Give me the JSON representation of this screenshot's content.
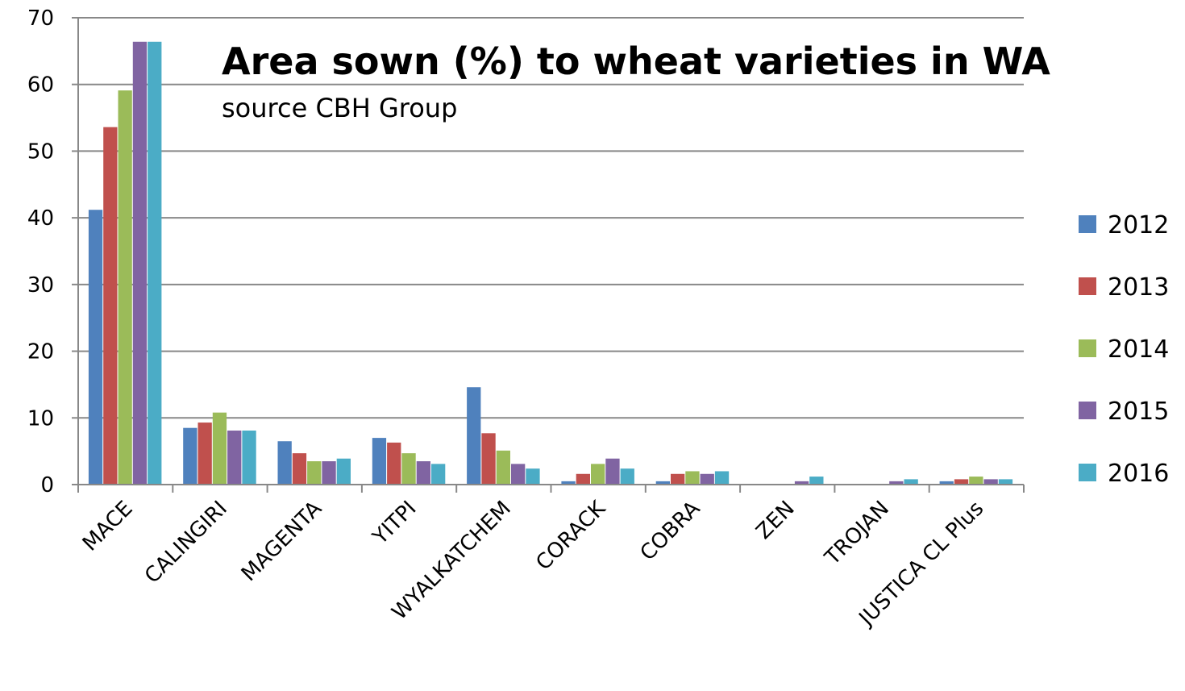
{
  "chart_data": {
    "type": "bar",
    "title": "Area sown (%) to wheat varieties in WA",
    "subtitle": "source CBH Group",
    "categories": [
      "MACE",
      "CALINGIRI",
      "MAGENTA",
      "YITPI",
      "WYALKATCHEM",
      "CORACK",
      "COBRA",
      "ZEN",
      "TROJAN",
      "JUSTICA CL Plus"
    ],
    "series": [
      {
        "name": "2012",
        "color": "#4f81bd",
        "values": [
          41.2,
          8.5,
          6.5,
          7.0,
          14.6,
          0.5,
          0.5,
          0,
          0,
          0.5
        ]
      },
      {
        "name": "2013",
        "color": "#c0504d",
        "values": [
          53.6,
          9.3,
          4.7,
          6.3,
          7.7,
          1.6,
          1.6,
          0,
          0,
          0.8
        ]
      },
      {
        "name": "2014",
        "color": "#9bbb59",
        "values": [
          59.1,
          10.8,
          3.5,
          4.7,
          5.1,
          3.1,
          2.0,
          0,
          0,
          1.2
        ]
      },
      {
        "name": "2015",
        "color": "#8064a2",
        "values": [
          66.4,
          8.1,
          3.5,
          3.5,
          3.1,
          3.9,
          1.6,
          0.5,
          0.5,
          0.8
        ]
      },
      {
        "name": "2016",
        "color": "#4bacc6",
        "values": [
          66.4,
          8.1,
          3.9,
          3.1,
          2.4,
          2.4,
          2.0,
          1.2,
          0.8,
          0.8
        ]
      }
    ],
    "ylim": [
      0,
      70
    ],
    "yticks": [
      0,
      10,
      20,
      30,
      40,
      50,
      60,
      70
    ],
    "grid": true,
    "legend": "right"
  }
}
